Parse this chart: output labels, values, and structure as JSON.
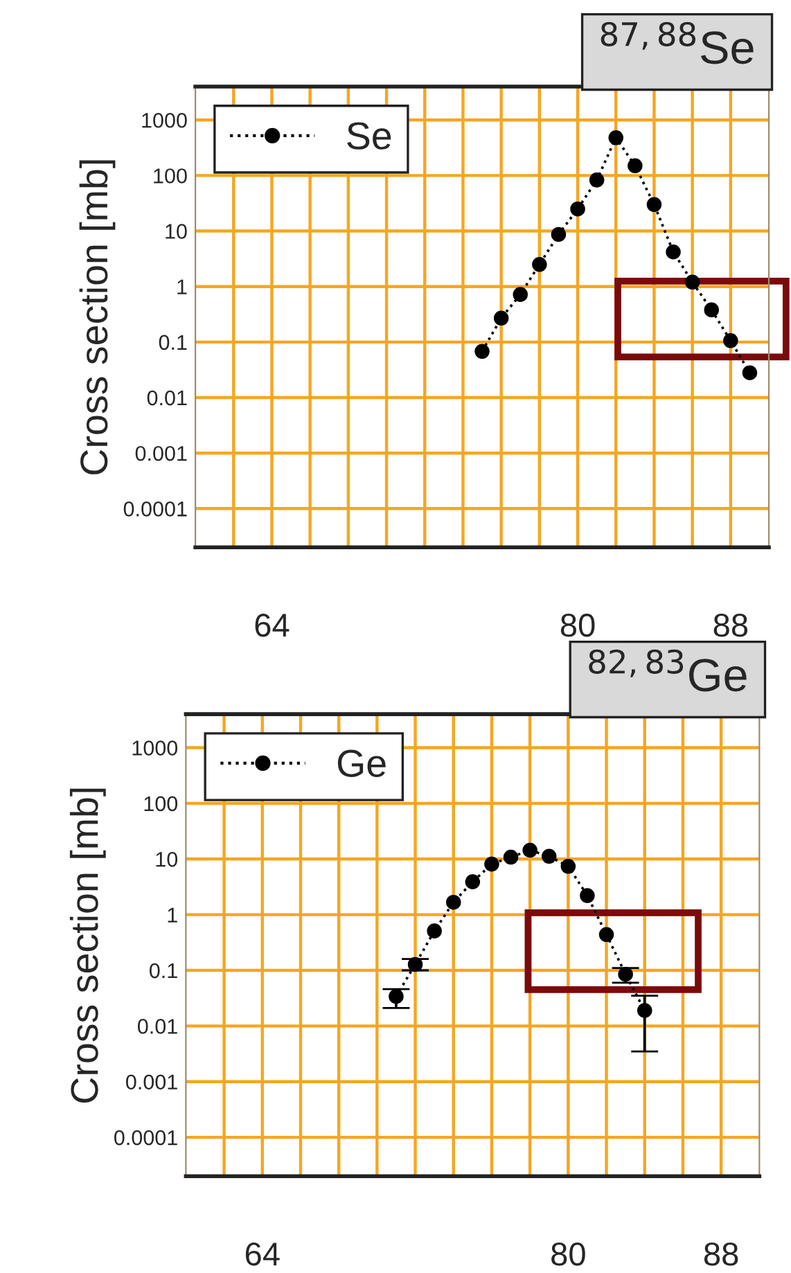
{
  "chart_data": [
    {
      "type": "line",
      "title": "$^{87,88}$Se",
      "ylabel": "Cross section [mb]",
      "x": [
        75,
        76,
        77,
        78,
        79,
        80,
        81,
        82,
        83,
        84,
        85,
        86,
        87,
        88,
        89
      ],
      "series": [
        {
          "name": "Se",
          "color": "#000000",
          "values": [
            0.068,
            0.27,
            0.72,
            2.5,
            8.7,
            25,
            83,
            480,
            150,
            30,
            4.2,
            1.2,
            0.38,
            0.106,
            0.028
          ]
        }
      ],
      "xlim": [
        60,
        90
      ],
      "xticks": [
        {
          "value": 62,
          "label": null
        },
        64,
        {
          "value": 66,
          "label": null
        },
        {
          "value": 68,
          "label": null
        },
        {
          "value": 70,
          "label": null
        },
        {
          "value": 72,
          "label": null
        },
        {
          "value": 74,
          "label": null
        },
        {
          "value": 76,
          "label": null
        },
        {
          "value": 78,
          "label": null
        },
        80,
        {
          "value": 82,
          "label": null
        },
        {
          "value": 84,
          "label": null
        },
        {
          "value": 86,
          "label": null
        },
        88
      ],
      "ylim": [
        2e-05,
        4000
      ],
      "yticks": [
        0.0001,
        0.001,
        0.01,
        0.1,
        1,
        10,
        100,
        1000
      ],
      "log": true,
      "grid": true,
      "legend": "top left",
      "marker": "circle",
      "line_style": "dotted"
    },
    {
      "type": "line",
      "title": "$^{82,83}$Ge",
      "ylabel": "Cross section [mb]",
      "x": [
        71,
        72,
        73,
        74,
        75,
        76,
        77,
        78,
        79,
        80,
        81,
        82,
        83,
        84
      ],
      "series": [
        {
          "name": "Ge",
          "color": "#000000",
          "values": [
            0.034,
            0.128,
            0.51,
            1.67,
            3.9,
            8.1,
            10.8,
            14.4,
            11.2,
            7.4,
            2.2,
            0.44,
            0.085,
            0.019
          ],
          "errors": [
            [
              0.021,
              0.046
            ],
            [
              0.1,
              0.16
            ],
            null,
            null,
            null,
            null,
            null,
            null,
            null,
            null,
            null,
            null,
            [
              0.06,
              0.11
            ],
            [
              0.0035,
              0.035
            ]
          ]
        }
      ],
      "xlim": [
        60,
        90
      ],
      "xticks": [
        {
          "value": 62,
          "label": null
        },
        64,
        {
          "value": 66,
          "label": null
        },
        {
          "value": 68,
          "label": null
        },
        {
          "value": 70,
          "label": null
        },
        {
          "value": 72,
          "label": null
        },
        {
          "value": 74,
          "label": null
        },
        {
          "value": 76,
          "label": null
        },
        {
          "value": 78,
          "label": null
        },
        80,
        {
          "value": 82,
          "label": null
        },
        {
          "value": 84,
          "label": null
        },
        {
          "value": 86,
          "label": null
        },
        88
      ],
      "ylim": [
        2e-05,
        4000
      ],
      "yticks": [
        0.0001,
        0.001,
        0.01,
        0.1,
        1,
        10,
        100,
        1000
      ],
      "log": true,
      "grid": true,
      "legend": "top left",
      "marker": "circle",
      "line_style": "dotted"
    }
  ]
}
